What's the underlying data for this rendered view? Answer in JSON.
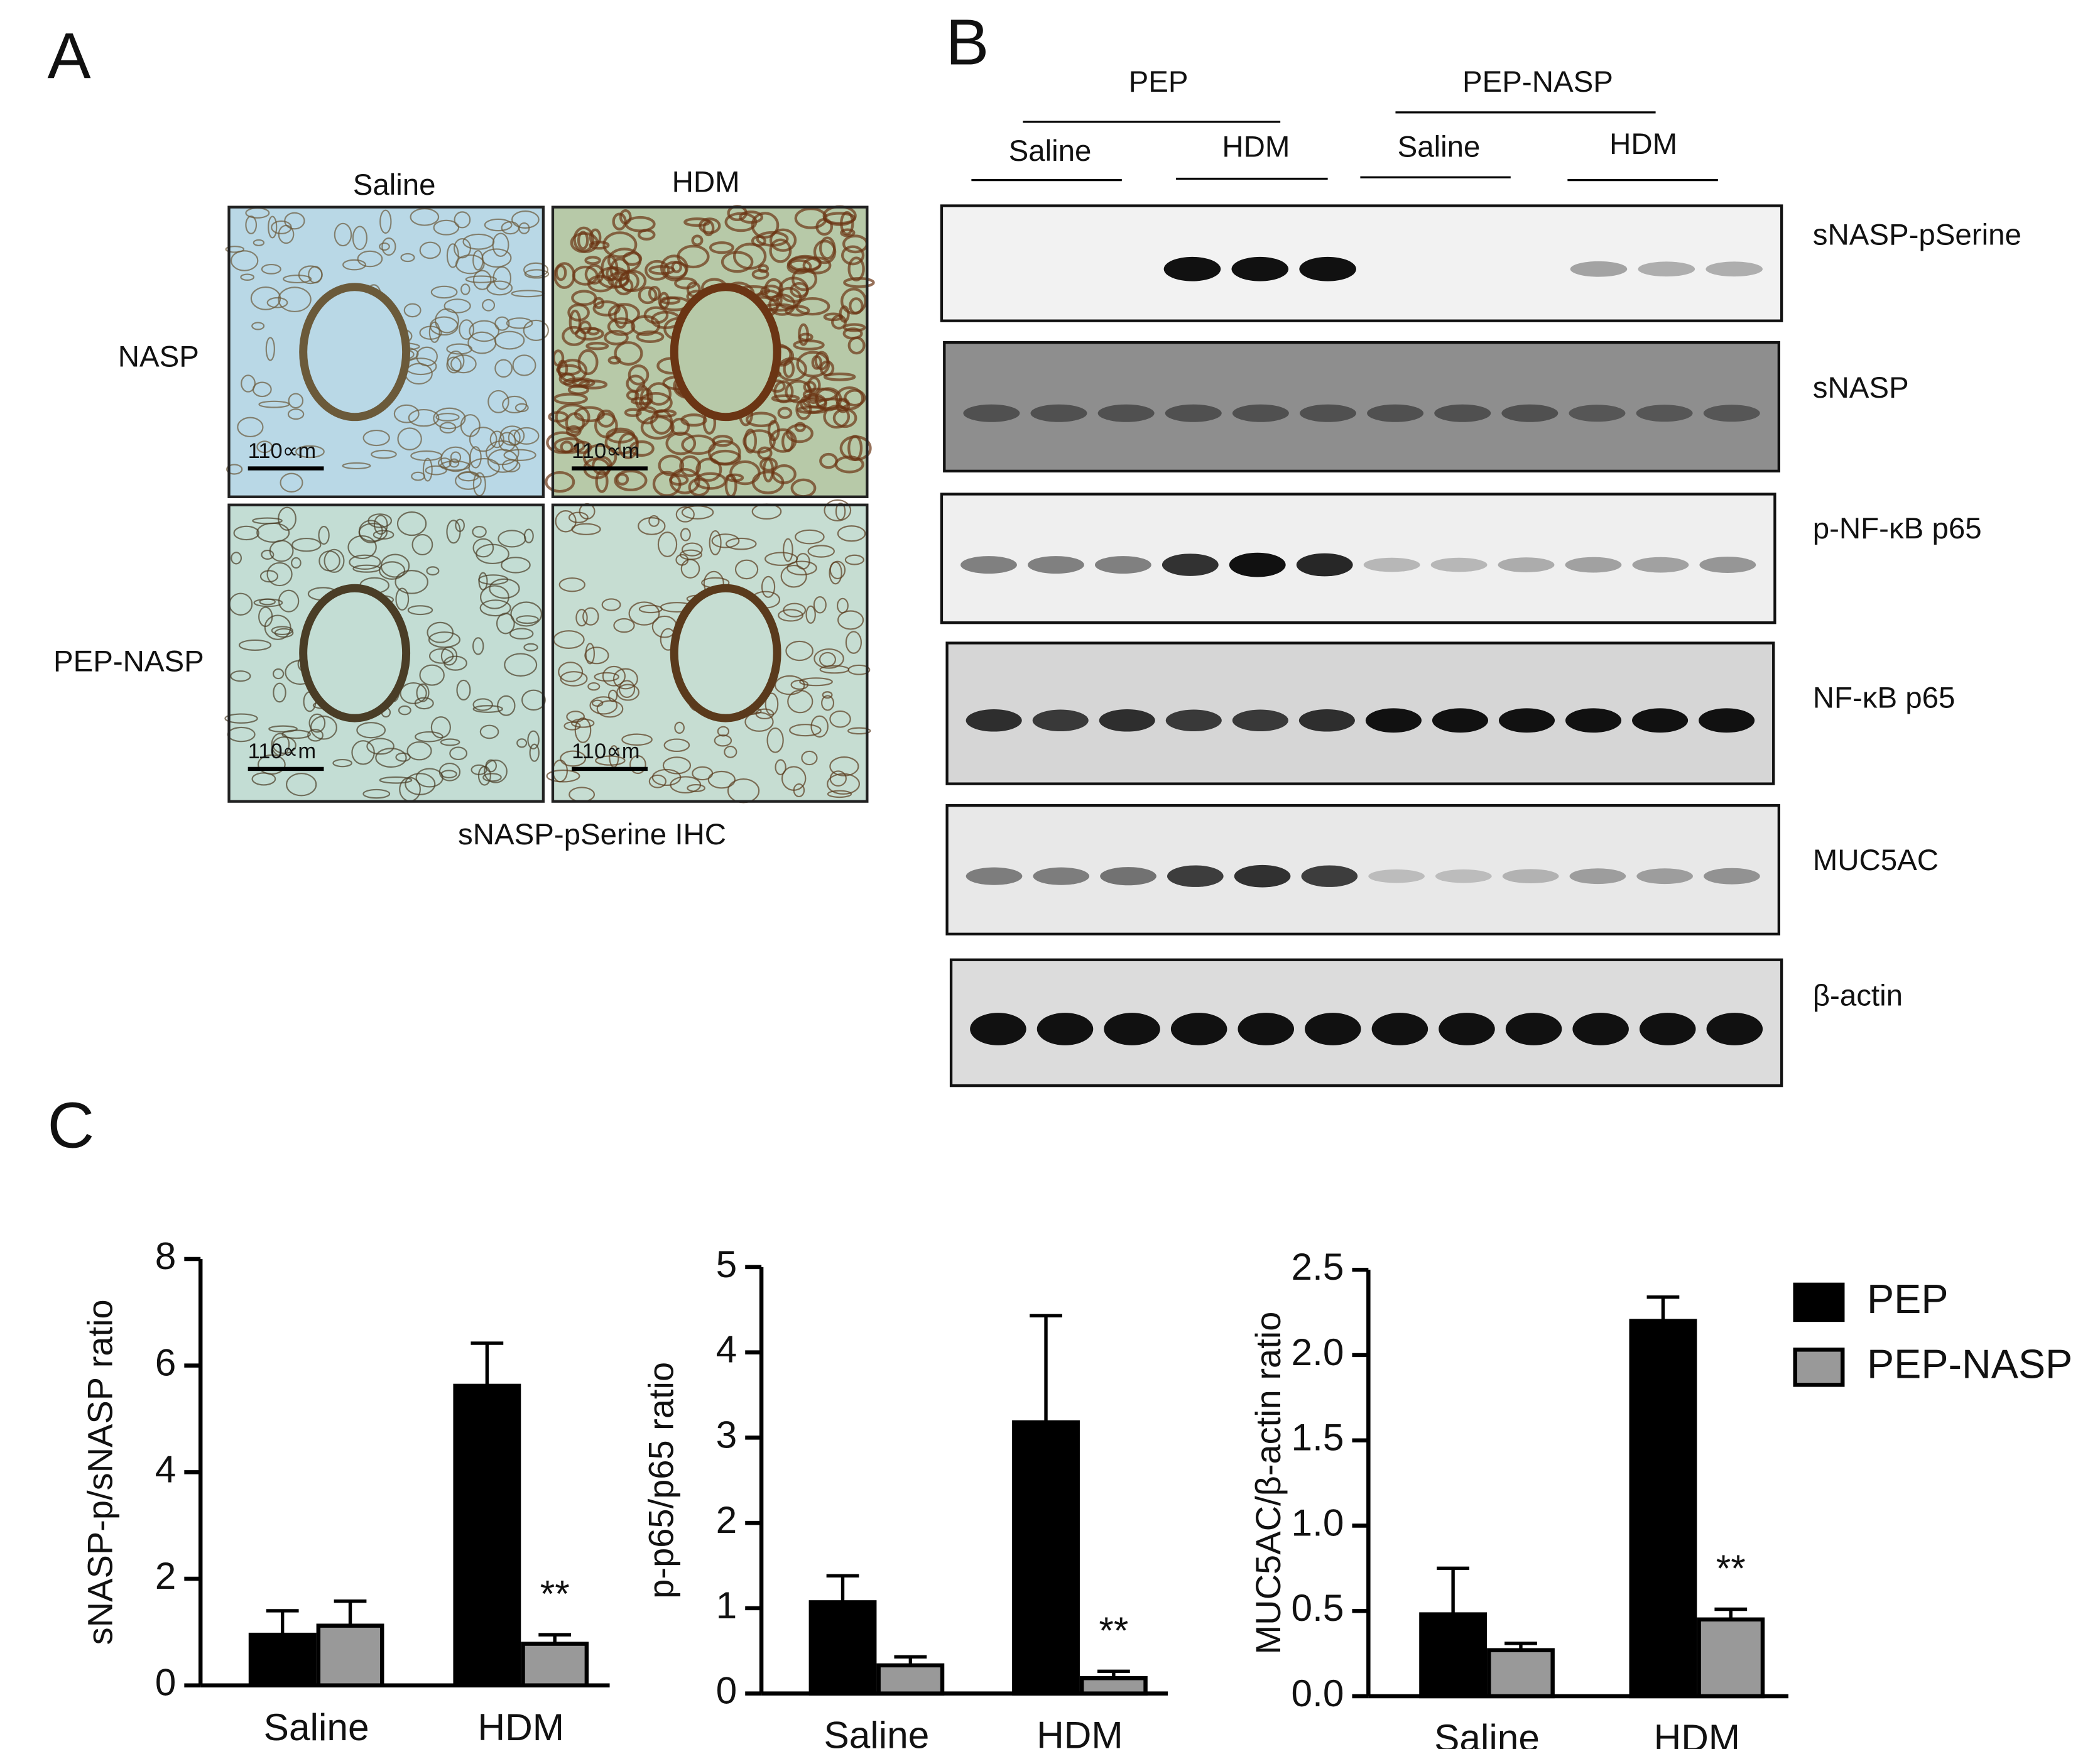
{
  "panel_a": {
    "letter": "A",
    "columns": [
      "Saline",
      "HDM"
    ],
    "rows": [
      "NASP",
      "PEP-NASP"
    ],
    "scale_labels": [
      "110∝m",
      "110∝m",
      "110∝m",
      "110∝m"
    ],
    "caption": "sNASP-pSerine IHC"
  },
  "panel_b": {
    "letter": "B",
    "groups": [
      "PEP",
      "PEP-NASP"
    ],
    "treatments": [
      "Saline",
      "HDM",
      "Saline",
      "HDM"
    ],
    "blots": [
      "sNASP-pSerine",
      "sNASP",
      "p-NF-κB p65",
      "NF-κB p65",
      "MUC5AC",
      "β-actin"
    ]
  },
  "panel_c": {
    "letter": "C"
  },
  "chart_data": [
    {
      "type": "bar",
      "y_label": "sNASP-p/sNASP ratio",
      "categories": [
        "Saline",
        "HDM"
      ],
      "series": [
        {
          "color": "#000000",
          "values": [
            0.95,
            5.62
          ],
          "errors": [
            0.45,
            0.8
          ]
        },
        {
          "color": "#999999",
          "values": [
            1.12,
            0.78
          ],
          "errors": [
            0.46,
            0.17
          ]
        }
      ],
      "ylim": [
        0,
        8
      ],
      "yticks": [
        0,
        2,
        4,
        6,
        8
      ],
      "annotation": "**"
    },
    {
      "type": "bar",
      "y_label": "p-p65/p65 ratio",
      "categories": [
        "Saline",
        "HDM"
      ],
      "series": [
        {
          "color": "#000000",
          "values": [
            1.07,
            3.18
          ],
          "errors": [
            0.31,
            1.25
          ]
        },
        {
          "color": "#999999",
          "values": [
            0.33,
            0.18
          ],
          "errors": [
            0.1,
            0.08
          ]
        }
      ],
      "ylim": [
        0,
        5
      ],
      "yticks": [
        0,
        1,
        2,
        3,
        4,
        5
      ],
      "annotation": "**"
    },
    {
      "type": "bar",
      "y_label": "MUC5AC/β-actin ratio",
      "categories": [
        "Saline",
        "HDM"
      ],
      "series": [
        {
          "name": "PEP",
          "color": "#000000",
          "values": [
            0.48,
            2.2
          ],
          "errors": [
            0.27,
            0.14
          ]
        },
        {
          "name": "PEP-NASP",
          "color": "#999999",
          "values": [
            0.27,
            0.45
          ],
          "errors": [
            0.04,
            0.06
          ]
        }
      ],
      "ylim": [
        0,
        2.5
      ],
      "yticks": [
        {
          "value": 0,
          "label": "0.0"
        },
        0.5,
        {
          "value": 1,
          "label": "1.0"
        },
        1.5,
        {
          "value": 2,
          "label": "2.0"
        },
        2.5
      ],
      "annotation": "**",
      "legend": "right"
    }
  ]
}
